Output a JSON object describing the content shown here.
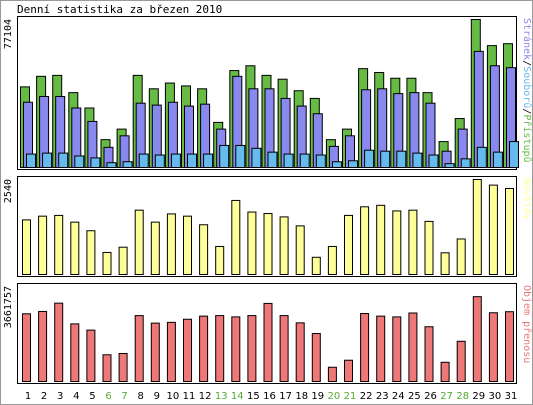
{
  "title": "Denní statistika za březen 2010",
  "colors": {
    "background": "#ffffff",
    "frame": "#000000",
    "pristupu": "#66bb44",
    "stranek": "#8888ee",
    "souboru": "#66bbee",
    "navstev": "#ffff99",
    "prenos": "#ee7777",
    "weekday_label": "#000000",
    "weekend_label": "#55aa33"
  },
  "chart_data": [
    {
      "type": "bar",
      "panel": "top",
      "ymax_label": "77104",
      "legend_vertical": [
        {
          "text": "Stránek",
          "color_key": "stranek"
        },
        {
          "text": "/",
          "color_key": "frame"
        },
        {
          "text": "Souborů",
          "color_key": "souboru"
        },
        {
          "text": "/",
          "color_key": "frame"
        },
        {
          "text": "Přístupů",
          "color_key": "pristupu"
        }
      ],
      "categories": [
        "1",
        "2",
        "3",
        "4",
        "5",
        "6",
        "7",
        "8",
        "9",
        "10",
        "11",
        "12",
        "13",
        "14",
        "15",
        "16",
        "17",
        "18",
        "19",
        "20",
        "21",
        "22",
        "23",
        "24",
        "25",
        "26",
        "27",
        "28",
        "29",
        "30",
        "31"
      ],
      "weekend_days": [
        "6",
        "7",
        "13",
        "14",
        "20",
        "21",
        "27",
        "28"
      ],
      "ylim": [
        0,
        77104
      ],
      "series": [
        {
          "name": "Přístupů",
          "color_key": "pristupu",
          "values": [
            42000,
            47500,
            48000,
            39000,
            31000,
            14500,
            20000,
            48000,
            41000,
            44000,
            42500,
            41000,
            23500,
            50500,
            53000,
            48000,
            46000,
            40000,
            36000,
            14500,
            20000,
            51500,
            49500,
            46500,
            46500,
            39000,
            13500,
            25500,
            77104,
            63500,
            64500
          ]
        },
        {
          "name": "Stránek",
          "color_key": "stranek",
          "values": [
            34000,
            37000,
            37000,
            31000,
            24000,
            10500,
            16500,
            33500,
            32500,
            34000,
            32000,
            33000,
            20000,
            47500,
            41000,
            41000,
            36000,
            32000,
            28000,
            11000,
            16500,
            40500,
            41000,
            38500,
            39000,
            33500,
            8500,
            20000,
            60500,
            53000,
            52000
          ]
        },
        {
          "name": "Souborů",
          "color_key": "souboru",
          "values": [
            7000,
            7500,
            7500,
            6000,
            5000,
            2500,
            3000,
            7000,
            6500,
            7000,
            7000,
            7000,
            11500,
            11500,
            10000,
            8000,
            7000,
            7000,
            6500,
            3000,
            3500,
            9000,
            8500,
            8500,
            7500,
            6500,
            2000,
            4500,
            10500,
            8000,
            13500
          ]
        }
      ]
    },
    {
      "type": "bar",
      "panel": "middle",
      "ymax_label": "2540",
      "legend_vertical": [
        {
          "text": "Návštěv",
          "color_key": "navstev"
        }
      ],
      "ylim": [
        0,
        2540
      ],
      "series": [
        {
          "name": "Návštěv",
          "color_key": "navstev",
          "values": [
            1460,
            1560,
            1580,
            1400,
            1170,
            590,
            730,
            1720,
            1400,
            1620,
            1560,
            1330,
            750,
            1980,
            1670,
            1630,
            1540,
            1300,
            460,
            750,
            1580,
            1810,
            1850,
            1700,
            1720,
            1420,
            580,
            950,
            2540,
            2390,
            2300
          ]
        }
      ]
    },
    {
      "type": "bar",
      "panel": "bottom",
      "ymax_label": "3661757",
      "legend_vertical": [
        {
          "text": "Objem přenosu",
          "color_key": "prenos"
        }
      ],
      "ylim": [
        0,
        3661757
      ],
      "series": [
        {
          "name": "Objem přenosu",
          "color_key": "prenos",
          "values": [
            2610000,
            2700000,
            3020000,
            2220000,
            1980000,
            1030000,
            1080000,
            2540000,
            2250000,
            2280000,
            2400000,
            2520000,
            2540000,
            2490000,
            2540000,
            3010000,
            2540000,
            2260000,
            1850000,
            550000,
            820000,
            2620000,
            2520000,
            2490000,
            2640000,
            2110000,
            740000,
            1550000,
            3270000,
            2650000,
            2690000
          ]
        }
      ]
    }
  ]
}
